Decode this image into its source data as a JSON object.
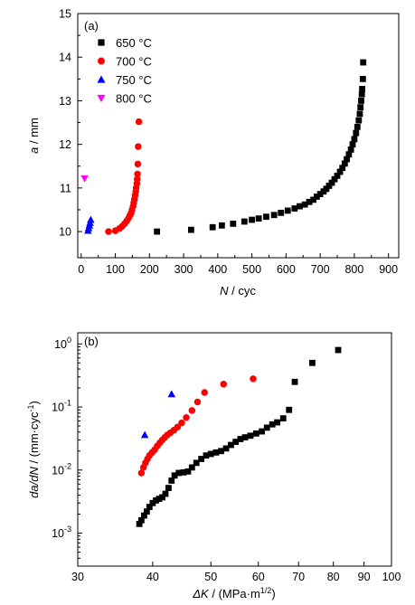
{
  "chart_data": [
    {
      "type": "scatter",
      "panel_label": "(a)",
      "xlabel_var": "N",
      "xlabel_unit": " / cyc",
      "ylabel_var": "a",
      "ylabel_unit": " / mm",
      "xlim": [
        -10,
        930
      ],
      "ylim": [
        9.4,
        15
      ],
      "xticks": [
        0,
        100,
        200,
        300,
        400,
        500,
        600,
        700,
        800,
        900
      ],
      "yticks": [
        10,
        11,
        12,
        13,
        14,
        15
      ],
      "legend_position": "top-left",
      "series": [
        {
          "name": "650 °C",
          "color": "#000000",
          "marker": "square",
          "points": [
            [
              222,
              10.0
            ],
            [
              322,
              10.04
            ],
            [
              385,
              10.1
            ],
            [
              412,
              10.14
            ],
            [
              445,
              10.18
            ],
            [
              478,
              10.23
            ],
            [
              500,
              10.27
            ],
            [
              520,
              10.3
            ],
            [
              542,
              10.34
            ],
            [
              565,
              10.38
            ],
            [
              585,
              10.43
            ],
            [
              605,
              10.48
            ],
            [
              625,
              10.53
            ],
            [
              640,
              10.58
            ],
            [
              655,
              10.62
            ],
            [
              668,
              10.68
            ],
            [
              680,
              10.73
            ],
            [
              690,
              10.8
            ],
            [
              700,
              10.86
            ],
            [
              710,
              10.92
            ],
            [
              718,
              10.98
            ],
            [
              726,
              11.05
            ],
            [
              734,
              11.12
            ],
            [
              742,
              11.2
            ],
            [
              750,
              11.28
            ],
            [
              758,
              11.37
            ],
            [
              765,
              11.46
            ],
            [
              772,
              11.56
            ],
            [
              778,
              11.66
            ],
            [
              784,
              11.77
            ],
            [
              790,
              11.88
            ],
            [
              795,
              12.0
            ],
            [
              800,
              12.12
            ],
            [
              805,
              12.26
            ],
            [
              809,
              12.4
            ],
            [
              813,
              12.55
            ],
            [
              816,
              12.7
            ],
            [
              818,
              12.85
            ],
            [
              820,
              13.0
            ],
            [
              822,
              13.15
            ],
            [
              823,
              13.27
            ],
            [
              825,
              13.5
            ],
            [
              826,
              13.88
            ]
          ]
        },
        {
          "name": "700 °C",
          "color": "#ff0000",
          "marker": "circle",
          "points": [
            [
              80,
              10.0
            ],
            [
              100,
              10.02
            ],
            [
              112,
              10.07
            ],
            [
              120,
              10.12
            ],
            [
              127,
              10.18
            ],
            [
              133,
              10.24
            ],
            [
              138,
              10.3
            ],
            [
              142,
              10.36
            ],
            [
              146,
              10.42
            ],
            [
              149,
              10.5
            ],
            [
              152,
              10.58
            ],
            [
              154,
              10.66
            ],
            [
              156,
              10.74
            ],
            [
              158,
              10.83
            ],
            [
              160,
              10.92
            ],
            [
              161,
              11.0
            ],
            [
              163,
              11.1
            ],
            [
              164,
              11.2
            ],
            [
              165,
              11.32
            ],
            [
              166,
              11.55
            ],
            [
              167,
              11.95
            ],
            [
              169,
              12.52
            ]
          ]
        },
        {
          "name": "750 °C",
          "color": "#0000ff",
          "marker": "triangle-up",
          "points": [
            [
              20,
              10.02
            ],
            [
              22,
              10.08
            ],
            [
              24,
              10.14
            ],
            [
              26,
              10.2
            ],
            [
              28,
              10.27
            ]
          ]
        },
        {
          "name": "800 °C",
          "color": "#ff00ff",
          "marker": "triangle-down",
          "points": [
            [
              10,
              11.22
            ]
          ]
        }
      ]
    },
    {
      "type": "scatter",
      "panel_label": "(b)",
      "xlabel_var": "ΔK",
      "xlabel_unit": " / (MPa·m",
      "xlabel_sup": "1/2",
      "xlabel_close": ")",
      "ylabel_var": "da/dN",
      "ylabel_unit": " / (mm·cyc",
      "ylabel_sup": "-1",
      "ylabel_close": ")",
      "x_scale": "log",
      "y_scale": "log",
      "xlim": [
        30,
        100
      ],
      "ylim": [
        0.0003,
        1.5
      ],
      "xticks": [
        30,
        40,
        50,
        60,
        70,
        80,
        90,
        100
      ],
      "yticks": [
        {
          "base": "10",
          "exp": "-3",
          "value": 0.001
        },
        {
          "base": "10",
          "exp": "-2",
          "value": 0.01
        },
        {
          "base": "10",
          "exp": "-1",
          "value": 0.1
        },
        {
          "base": "10",
          "exp": "0",
          "value": 1
        }
      ],
      "series": [
        {
          "name": "650 °C",
          "color": "#000000",
          "marker": "square",
          "points": [
            [
              38.0,
              0.0014
            ],
            [
              38.3,
              0.0016
            ],
            [
              38.7,
              0.0019
            ],
            [
              39.1,
              0.0022
            ],
            [
              39.5,
              0.0026
            ],
            [
              40.0,
              0.003
            ],
            [
              40.5,
              0.0033
            ],
            [
              41.0,
              0.0035
            ],
            [
              41.5,
              0.0037
            ],
            [
              42.0,
              0.0042
            ],
            [
              42.5,
              0.0052
            ],
            [
              43.0,
              0.0068
            ],
            [
              43.5,
              0.0082
            ],
            [
              44.2,
              0.009
            ],
            [
              45.0,
              0.0092
            ],
            [
              45.8,
              0.0095
            ],
            [
              46.5,
              0.011
            ],
            [
              47.3,
              0.013
            ],
            [
              48.2,
              0.015
            ],
            [
              49.1,
              0.017
            ],
            [
              50.0,
              0.018
            ],
            [
              51.0,
              0.019
            ],
            [
              52.0,
              0.02
            ],
            [
              53.0,
              0.022
            ],
            [
              54.0,
              0.025
            ],
            [
              55.0,
              0.028
            ],
            [
              56.0,
              0.031
            ],
            [
              57.0,
              0.033
            ],
            [
              58.2,
              0.035
            ],
            [
              59.5,
              0.038
            ],
            [
              60.8,
              0.041
            ],
            [
              62.0,
              0.047
            ],
            [
              63.3,
              0.053
            ],
            [
              64.5,
              0.057
            ],
            [
              66.0,
              0.066
            ],
            [
              67.5,
              0.09
            ],
            [
              69.0,
              0.25
            ],
            [
              73.8,
              0.5
            ],
            [
              81.5,
              0.8
            ]
          ]
        },
        {
          "name": "700 °C",
          "color": "#ff0000",
          "marker": "circle",
          "points": [
            [
              38.3,
              0.009
            ],
            [
              38.6,
              0.011
            ],
            [
              38.9,
              0.013
            ],
            [
              39.2,
              0.015
            ],
            [
              39.5,
              0.017
            ],
            [
              39.9,
              0.019
            ],
            [
              40.3,
              0.021
            ],
            [
              40.7,
              0.024
            ],
            [
              41.1,
              0.027
            ],
            [
              41.5,
              0.03
            ],
            [
              41.9,
              0.033
            ],
            [
              42.3,
              0.036
            ],
            [
              42.8,
              0.039
            ],
            [
              43.4,
              0.043
            ],
            [
              44.0,
              0.048
            ],
            [
              44.7,
              0.056
            ],
            [
              45.5,
              0.068
            ],
            [
              46.5,
              0.088
            ],
            [
              47.5,
              0.12
            ],
            [
              48.8,
              0.17
            ],
            [
              52.5,
              0.23
            ],
            [
              58.8,
              0.28
            ]
          ]
        },
        {
          "name": "750 °C",
          "color": "#0000ff",
          "marker": "triangle-up",
          "points": [
            [
              38.8,
              0.036
            ],
            [
              43.0,
              0.16
            ]
          ]
        }
      ]
    }
  ]
}
